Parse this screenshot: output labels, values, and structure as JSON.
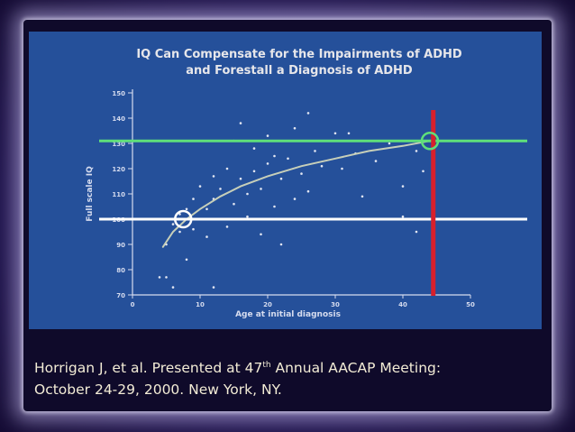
{
  "slide": {
    "caption_line1_a": "Horrigan J, et al. Presented at 47",
    "caption_sup": "th",
    "caption_line1_b": " Annual AACAP Meeting:",
    "caption_line2": "October 24-29, 2000.  New York, NY."
  },
  "colors": {
    "panel": "#25509a",
    "green_line": "#5fe07a",
    "white_line": "#ffffff",
    "red_line": "#d8202c",
    "axis_text": "#d6dcef",
    "title_text": "#e6e6ea"
  },
  "chart_data": {
    "type": "scatter",
    "title": "IQ Can Compensate for the Impairments of ADHD\nand Forestall a Diagnosis of ADHD",
    "xlabel": "Age at initial diagnosis",
    "ylabel": "Full scale IQ",
    "xlim": [
      0,
      50
    ],
    "ylim": [
      70,
      150
    ],
    "x_ticks": [
      0,
      10,
      20,
      30,
      40,
      50
    ],
    "y_ticks": [
      70,
      80,
      90,
      100,
      110,
      120,
      130,
      140,
      150
    ],
    "grid": false,
    "points": [
      [
        4,
        77
      ],
      [
        5,
        77
      ],
      [
        5,
        90
      ],
      [
        6,
        73
      ],
      [
        6,
        98
      ],
      [
        7,
        95
      ],
      [
        7,
        102
      ],
      [
        8,
        84
      ],
      [
        8,
        104
      ],
      [
        9,
        96
      ],
      [
        9,
        108
      ],
      [
        10,
        100
      ],
      [
        10,
        113
      ],
      [
        11,
        93
      ],
      [
        11,
        104
      ],
      [
        12,
        73
      ],
      [
        12,
        108
      ],
      [
        12,
        117
      ],
      [
        13,
        112
      ],
      [
        13,
        100
      ],
      [
        14,
        120
      ],
      [
        14,
        97
      ],
      [
        15,
        106
      ],
      [
        15,
        131
      ],
      [
        16,
        138
      ],
      [
        16,
        116
      ],
      [
        17,
        110
      ],
      [
        17,
        101
      ],
      [
        18,
        128
      ],
      [
        18,
        119
      ],
      [
        19,
        112
      ],
      [
        19,
        94
      ],
      [
        20,
        122
      ],
      [
        20,
        133
      ],
      [
        21,
        105
      ],
      [
        21,
        125
      ],
      [
        22,
        116
      ],
      [
        22,
        90
      ],
      [
        23,
        124
      ],
      [
        24,
        108
      ],
      [
        24,
        136
      ],
      [
        25,
        118
      ],
      [
        26,
        142
      ],
      [
        26,
        111
      ],
      [
        27,
        127
      ],
      [
        28,
        121
      ],
      [
        29,
        100
      ],
      [
        30,
        134
      ],
      [
        31,
        120
      ],
      [
        32,
        134
      ],
      [
        33,
        126
      ],
      [
        34,
        109
      ],
      [
        36,
        123
      ],
      [
        38,
        130
      ],
      [
        40,
        113
      ],
      [
        40,
        101
      ],
      [
        42,
        127
      ],
      [
        42,
        95
      ],
      [
        43,
        119
      ],
      [
        44,
        131
      ]
    ],
    "trend": {
      "type": "logarithmic",
      "x": [
        4.5,
        6,
        8,
        10,
        13,
        16,
        20,
        25,
        30,
        35,
        40,
        44
      ],
      "y": [
        89,
        95,
        100,
        104,
        109,
        113,
        117,
        121,
        124,
        127,
        129,
        131
      ]
    },
    "annotations": {
      "green_hline_y": 131,
      "white_hline_y": 100,
      "red_vline_x": 44.5,
      "circles": [
        {
          "x": 7.5,
          "y": 100,
          "color": "white"
        },
        {
          "x": 44,
          "y": 131,
          "color": "green"
        }
      ]
    }
  }
}
